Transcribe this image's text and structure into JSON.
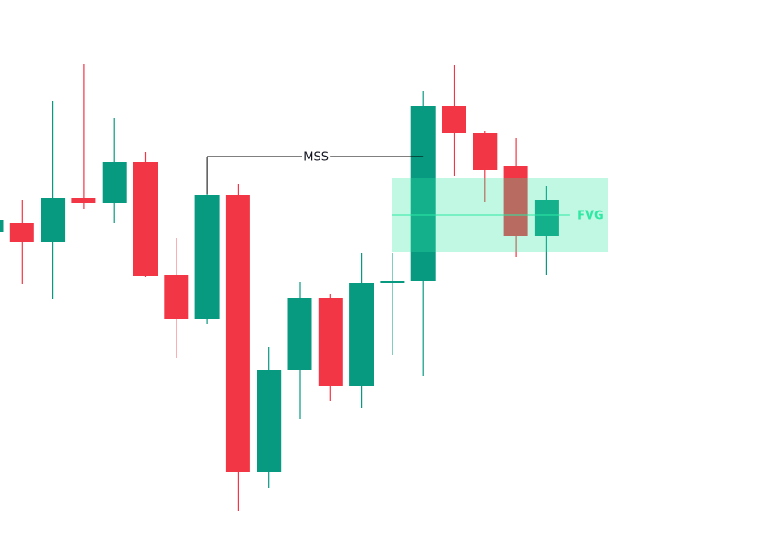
{
  "chart_data": {
    "type": "candlestick",
    "categories": [
      null,
      null,
      null,
      null,
      null,
      null,
      null,
      null,
      null,
      null,
      null,
      null,
      null,
      null,
      null,
      null,
      null,
      null,
      null
    ],
    "open": [
      352,
      362,
      341,
      390,
      384,
      430,
      304,
      256,
      393,
      86,
      199,
      279,
      181,
      296,
      298,
      492,
      462,
      425,
      348
    ],
    "high": [
      370,
      388,
      498,
      539,
      479,
      441,
      346,
      394,
      405,
      225,
      297,
      283,
      329,
      329,
      509,
      538,
      464,
      457,
      403
    ],
    "low": [
      348,
      294,
      278,
      378,
      362,
      302,
      212,
      250,
      42,
      68,
      145,
      164,
      157,
      216,
      192,
      414,
      386,
      325,
      305
    ],
    "close": [
      366,
      341,
      390,
      384,
      430,
      303,
      256,
      393,
      86,
      199,
      279,
      181,
      296,
      298,
      492,
      462,
      421,
      348,
      388
    ],
    "up_color": "#089981",
    "down_color": "#f23645",
    "ylim": [
      0,
      610
    ],
    "annotations": [
      {
        "text": "MSS",
        "level": 436
      },
      {
        "text": "FVG",
        "top": 412,
        "bottom": 330,
        "level": 371,
        "color": "#2ee8a3"
      }
    ]
  }
}
